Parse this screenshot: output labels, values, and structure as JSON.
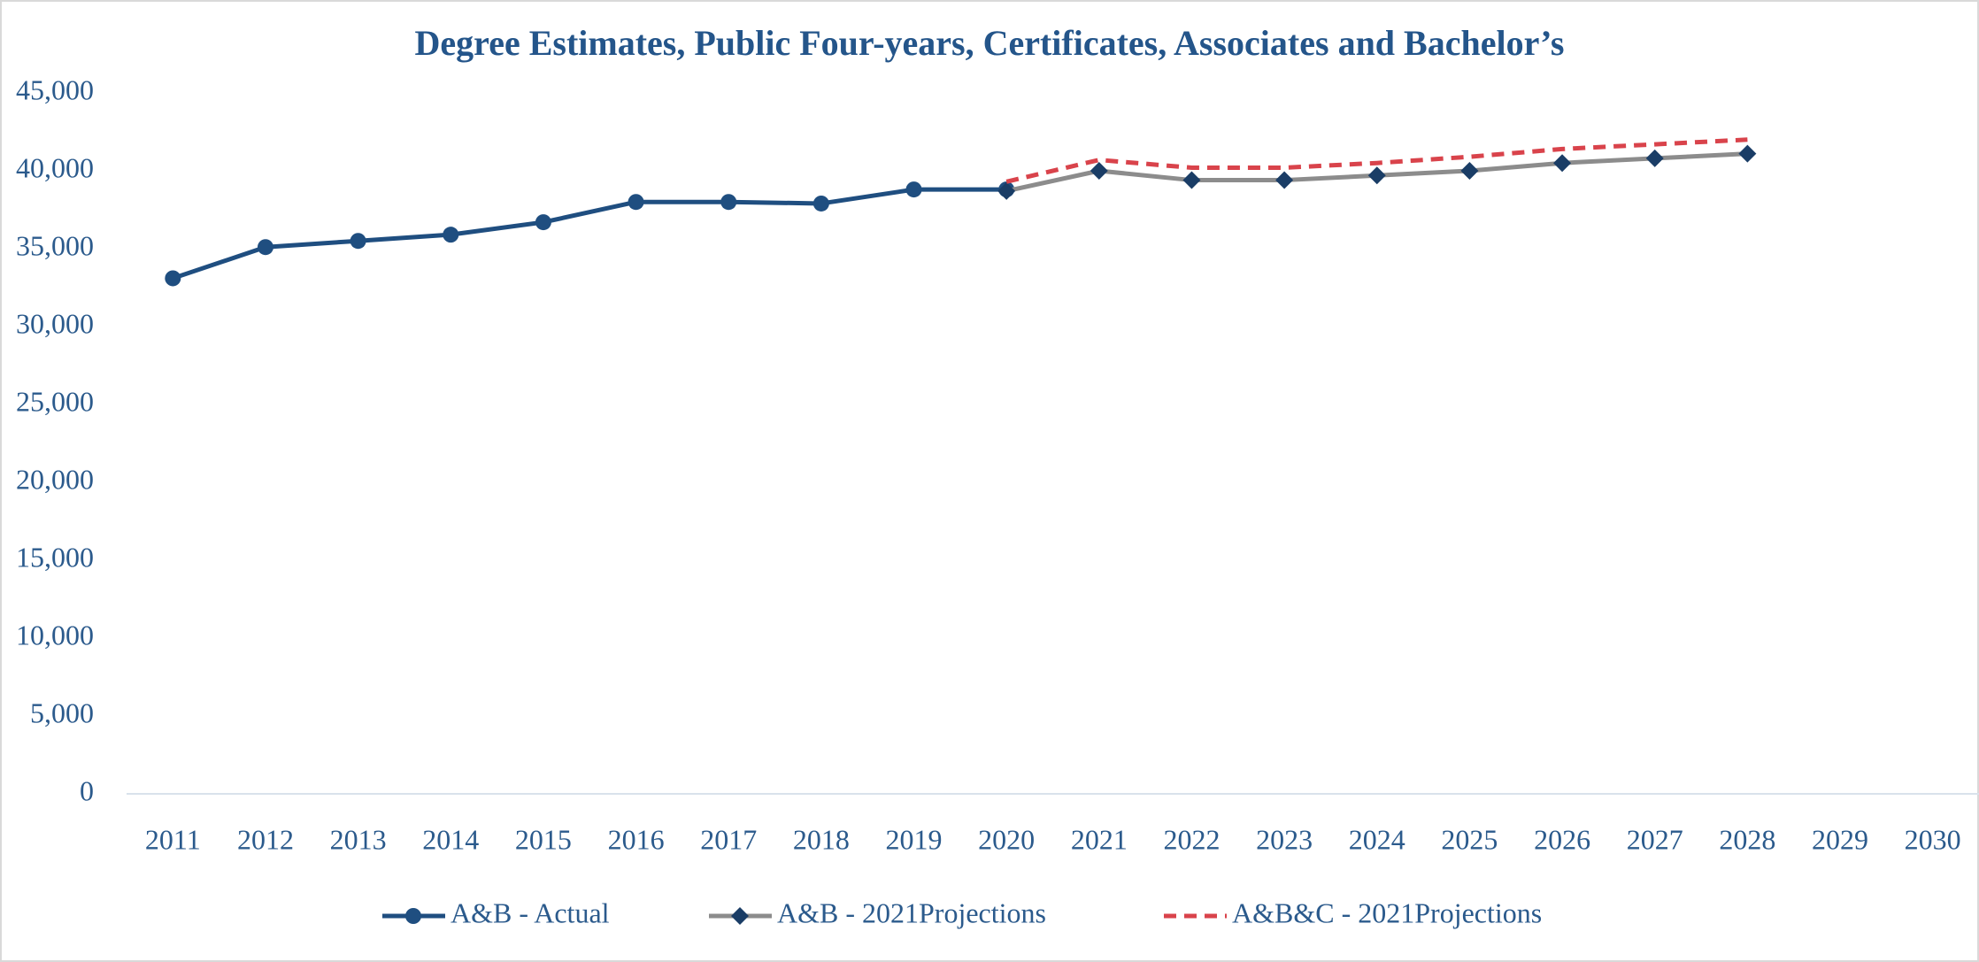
{
  "chart_data": {
    "type": "line",
    "title": "Degree Estimates, Public Four-years, Certificates, Associates and Bachelor’s",
    "categories": [
      "2011",
      "2012",
      "2013",
      "2014",
      "2015",
      "2016",
      "2017",
      "2018",
      "2019",
      "2020",
      "2021",
      "2022",
      "2023",
      "2024",
      "2025",
      "2026",
      "2027",
      "2028",
      "2029",
      "2030"
    ],
    "series": [
      {
        "name": "A&B - Actual",
        "color": "#1f4e80",
        "marker": "circle",
        "dash": false,
        "values": [
          33100,
          35100,
          35500,
          35900,
          36700,
          38000,
          38000,
          37900,
          38800,
          38800,
          null,
          null,
          null,
          null,
          null,
          null,
          null,
          null,
          null,
          null
        ]
      },
      {
        "name": "A&B - 2021Projections",
        "color": "#8c8c8c",
        "marker_color": "#1a3d66",
        "marker": "diamond",
        "dash": false,
        "values": [
          null,
          null,
          null,
          null,
          null,
          null,
          null,
          null,
          null,
          38700,
          40000,
          39400,
          39400,
          39700,
          40000,
          40500,
          40800,
          41100,
          null,
          null
        ]
      },
      {
        "name": "A&B&C - 2021Projections",
        "color": "#d9434b",
        "marker": null,
        "dash": true,
        "values": [
          null,
          null,
          null,
          null,
          null,
          null,
          null,
          null,
          null,
          39300,
          40700,
          40200,
          40200,
          40500,
          40900,
          41400,
          41700,
          42000,
          null,
          null
        ]
      }
    ],
    "ylim": [
      0,
      45000
    ],
    "yticks": [
      0,
      {
        "value": 5000,
        "label": "5,000"
      },
      {
        "value": 10000,
        "label": "10,000"
      },
      {
        "value": 15000,
        "label": "15,000"
      },
      {
        "value": 20000,
        "label": "20,000"
      },
      {
        "value": 25000,
        "label": "25,000"
      },
      {
        "value": 30000,
        "label": "30,000"
      },
      {
        "value": 35000,
        "label": "35,000"
      },
      {
        "value": 40000,
        "label": "40,000"
      },
      {
        "value": 45000,
        "label": "45,000"
      }
    ],
    "grid": false,
    "legend": "bottom"
  }
}
